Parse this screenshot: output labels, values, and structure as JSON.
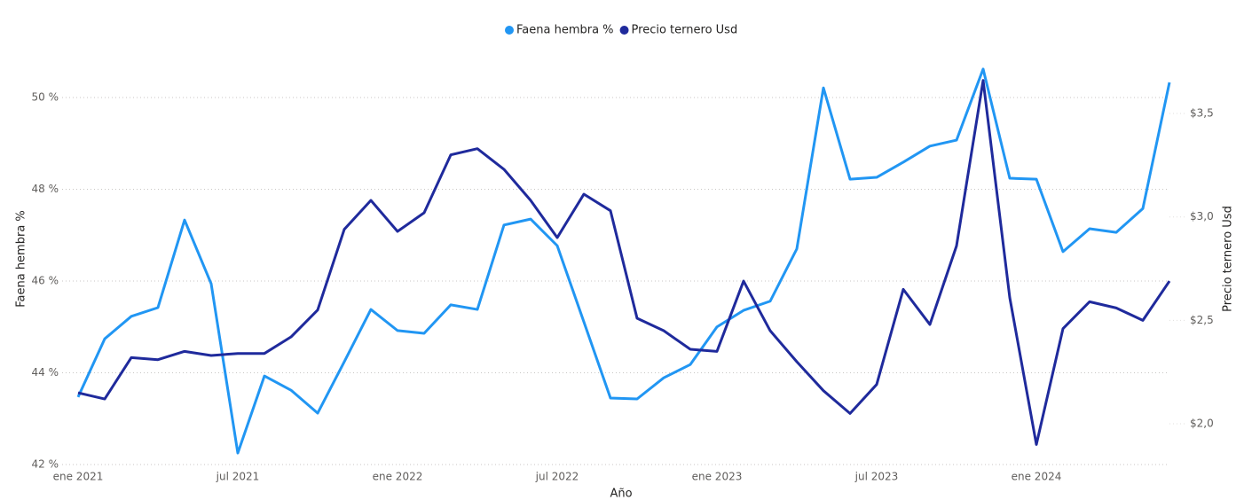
{
  "chart_data": {
    "type": "line",
    "legend": "top",
    "x_label": "Año",
    "y_label": "Faena hembra %",
    "y2_label": "Precio ternero Usd",
    "x": [
      "2021-01",
      "2021-02",
      "2021-03",
      "2021-04",
      "2021-05",
      "2021-06",
      "2021-07",
      "2021-08",
      "2021-09",
      "2021-10",
      "2021-11",
      "2021-12",
      "2022-01",
      "2022-02",
      "2022-03",
      "2022-04",
      "2022-05",
      "2022-06",
      "2022-07",
      "2022-08",
      "2022-09",
      "2022-10",
      "2022-11",
      "2022-12",
      "2023-01",
      "2023-02",
      "2023-03",
      "2023-04",
      "2023-05",
      "2023-06",
      "2023-07",
      "2023-08",
      "2023-09",
      "2023-10",
      "2023-11",
      "2023-12",
      "2024-01",
      "2024-02",
      "2024-03",
      "2024-04",
      "2024-05",
      "2024-06"
    ],
    "xticks": [
      {
        "value": "2021-01",
        "label": "ene 2021"
      },
      {
        "value": "2021-07",
        "label": "jul 2021"
      },
      {
        "value": "2022-01",
        "label": "ene 2022"
      },
      {
        "value": "2022-07",
        "label": "jul 2022"
      },
      {
        "value": "2023-01",
        "label": "ene 2023"
      },
      {
        "value": "2023-07",
        "label": "jul 2023"
      },
      {
        "value": "2024-01",
        "label": "ene 2024"
      }
    ],
    "ylim": [
      42,
      51.4
    ],
    "yticks": [
      {
        "value": 42,
        "label": "42 %"
      },
      {
        "value": 44,
        "label": "44 %"
      },
      {
        "value": 46,
        "label": "46 %"
      },
      {
        "value": 48,
        "label": "48 %"
      },
      {
        "value": 50,
        "label": "50 %"
      }
    ],
    "y2lim": [
      1.803,
      3.888
    ],
    "y2ticks": [
      {
        "value": 2.0,
        "label": "$2,0"
      },
      {
        "value": 2.5,
        "label": "$2,5"
      },
      {
        "value": 3.0,
        "label": "$3,0"
      },
      {
        "value": 3.5,
        "label": "$3,5"
      }
    ],
    "grid": true,
    "series": [
      {
        "name": "Faena hembra %",
        "color": "#2196f3",
        "values": [
          43.47,
          44.74,
          45.23,
          45.42,
          47.33,
          45.94,
          42.25,
          43.93,
          43.62,
          43.12,
          44.24,
          45.38,
          44.92,
          44.86,
          45.48,
          45.38,
          47.22,
          47.35,
          46.77,
          45.11,
          43.45,
          43.43,
          43.89,
          44.18,
          45.0,
          45.36,
          45.56,
          46.7,
          50.21,
          48.22,
          48.26,
          48.59,
          48.94,
          49.07,
          50.62,
          48.24,
          48.22,
          46.64,
          47.14,
          47.06,
          47.58,
          50.33
        ]
      },
      {
        "name": "Precio ternero Usd",
        "color": "#1f2a9c",
        "axis": "y2",
        "values": [
          2.15,
          2.12,
          2.32,
          2.31,
          2.35,
          2.33,
          2.34,
          2.34,
          2.42,
          2.55,
          2.94,
          3.08,
          2.93,
          3.02,
          3.3,
          3.33,
          3.23,
          3.08,
          2.9,
          3.11,
          3.03,
          2.51,
          2.45,
          2.36,
          2.35,
          2.69,
          2.45,
          2.3,
          2.16,
          2.05,
          2.19,
          2.65,
          2.48,
          2.86,
          3.66,
          2.61,
          1.9,
          2.46,
          2.59,
          2.56,
          2.5,
          2.69
        ]
      }
    ]
  }
}
